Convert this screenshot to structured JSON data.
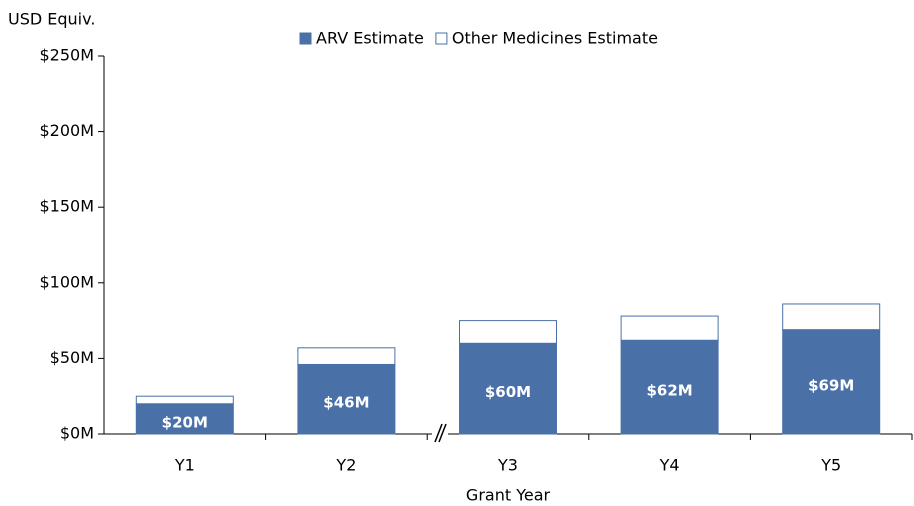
{
  "chart_data": {
    "type": "stacked-bar",
    "y_axis_label": "USD Equiv.",
    "x_axis_label": "Grant Year",
    "categories": [
      "Y1",
      "Y2",
      "Y3",
      "Y4",
      "Y5"
    ],
    "series": [
      {
        "name": "ARV Estimate",
        "color": "#4a70a8",
        "values": [
          20,
          46,
          60,
          62,
          69
        ],
        "value_labels": [
          "$20M",
          "$46M",
          "$60M",
          "$62M",
          "$69M"
        ]
      },
      {
        "name": "Other Medicines Estimate",
        "color": "#ffffff",
        "values": [
          5,
          11,
          15,
          16,
          17
        ]
      }
    ],
    "ylim": [
      0,
      250
    ],
    "yticks": [
      {
        "value": 0,
        "label": "$0M"
      },
      {
        "value": 50,
        "label": "$50M"
      },
      {
        "value": 100,
        "label": "$100M"
      },
      {
        "value": 150,
        "label": "$150M"
      },
      {
        "value": 200,
        "label": "$200M"
      },
      {
        "value": 250,
        "label": "$250M"
      }
    ],
    "grid": false,
    "legend": "top"
  }
}
